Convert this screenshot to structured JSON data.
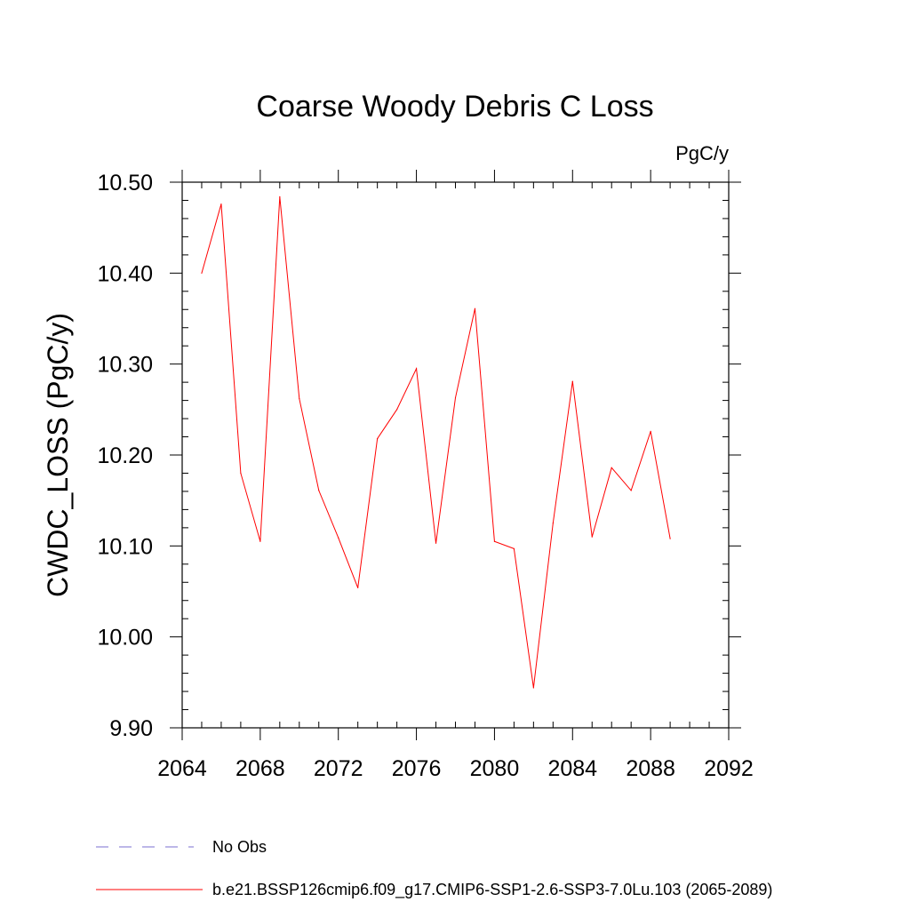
{
  "chart_data": {
    "type": "line",
    "title": "Coarse Woody Debris C Loss",
    "units_label": "PgC/y",
    "ylabel": "CWDC_LOSS  (PgC/y)",
    "xlabel": "",
    "xlim": [
      2064,
      2092
    ],
    "ylim": [
      9.9,
      10.5
    ],
    "x_ticks": [
      2064,
      2068,
      2072,
      2076,
      2080,
      2084,
      2088,
      2092
    ],
    "x_tick_labels": [
      "2064",
      "2068",
      "2072",
      "2076",
      "2080",
      "2084",
      "2088",
      "2092"
    ],
    "y_ticks": [
      9.9,
      10.0,
      10.1,
      10.2,
      10.3,
      10.4,
      10.5
    ],
    "y_tick_labels": [
      "9.90",
      "10.00",
      "10.10",
      "10.20",
      "10.30",
      "10.40",
      "10.50"
    ],
    "grid": false,
    "legend_position": "bottom",
    "series": [
      {
        "name": "b.e21.BSSP126cmip6.f09_g17.CMIP6-SSP1-2.6-SSP3-7.0Lu.103 (2065-2089)",
        "color": "#ff0000",
        "style": "solid",
        "x": [
          2065,
          2066,
          2067,
          2068,
          2069,
          2070,
          2071,
          2072,
          2073,
          2074,
          2075,
          2076,
          2077,
          2078,
          2079,
          2080,
          2081,
          2082,
          2083,
          2084,
          2085,
          2086,
          2087,
          2088,
          2089
        ],
        "values": [
          10.4,
          10.476,
          10.18,
          10.105,
          10.484,
          10.262,
          10.161,
          10.109,
          10.054,
          10.218,
          10.25,
          10.295,
          10.103,
          10.263,
          10.361,
          10.105,
          10.097,
          9.944,
          10.125,
          10.281,
          10.11,
          10.186,
          10.161,
          10.226,
          10.108
        ]
      }
    ],
    "legend": [
      {
        "label": "No Obs",
        "color": "#7b6fd0",
        "style": "dashed"
      },
      {
        "label": "b.e21.BSSP126cmip6.f09_g17.CMIP6-SSP1-2.6-SSP3-7.0Lu.103 (2065-2089)",
        "color": "#ff0000",
        "style": "solid"
      }
    ]
  }
}
